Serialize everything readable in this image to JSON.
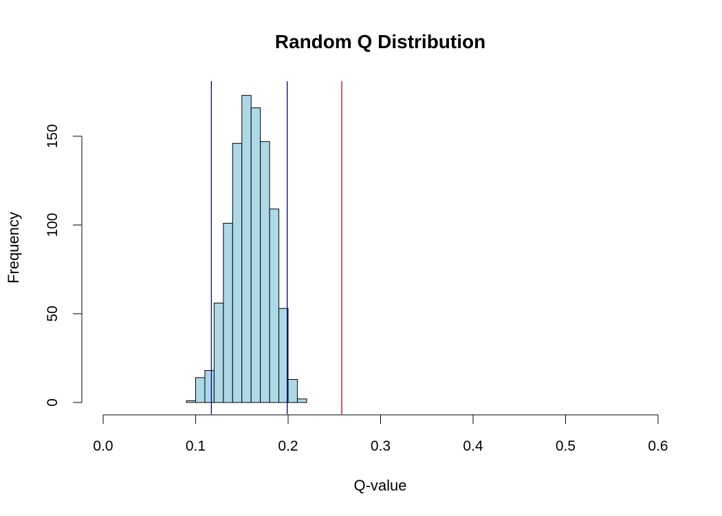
{
  "chart_data": {
    "type": "bar",
    "title": "Random Q Distribution",
    "xlabel": "Q-value",
    "ylabel": "Frequency",
    "xlim": [
      0.0,
      0.6
    ],
    "ylim": [
      0,
      180
    ],
    "x_ticks": [
      "0.0",
      "0.1",
      "0.2",
      "0.3",
      "0.4",
      "0.5",
      "0.6"
    ],
    "y_ticks": [
      "0",
      "50",
      "100",
      "150"
    ],
    "bin_width": 0.01,
    "bins": [
      {
        "x0": 0.09,
        "x1": 0.1,
        "count": 1
      },
      {
        "x0": 0.1,
        "x1": 0.11,
        "count": 14
      },
      {
        "x0": 0.11,
        "x1": 0.12,
        "count": 18
      },
      {
        "x0": 0.12,
        "x1": 0.13,
        "count": 56
      },
      {
        "x0": 0.13,
        "x1": 0.14,
        "count": 101
      },
      {
        "x0": 0.14,
        "x1": 0.15,
        "count": 146
      },
      {
        "x0": 0.15,
        "x1": 0.16,
        "count": 173
      },
      {
        "x0": 0.16,
        "x1": 0.17,
        "count": 166
      },
      {
        "x0": 0.17,
        "x1": 0.18,
        "count": 147
      },
      {
        "x0": 0.18,
        "x1": 0.19,
        "count": 109
      },
      {
        "x0": 0.19,
        "x1": 0.2,
        "count": 53
      },
      {
        "x0": 0.2,
        "x1": 0.21,
        "count": 13
      },
      {
        "x0": 0.21,
        "x1": 0.22,
        "count": 2
      }
    ],
    "reference_lines": [
      {
        "x": 0.117,
        "color": "#00008B"
      },
      {
        "x": 0.199,
        "color": "#00008B"
      },
      {
        "x": 0.258,
        "color": "#CD0000"
      }
    ],
    "bar_color": "#ADD8E6",
    "grid": false,
    "legend": "none"
  }
}
